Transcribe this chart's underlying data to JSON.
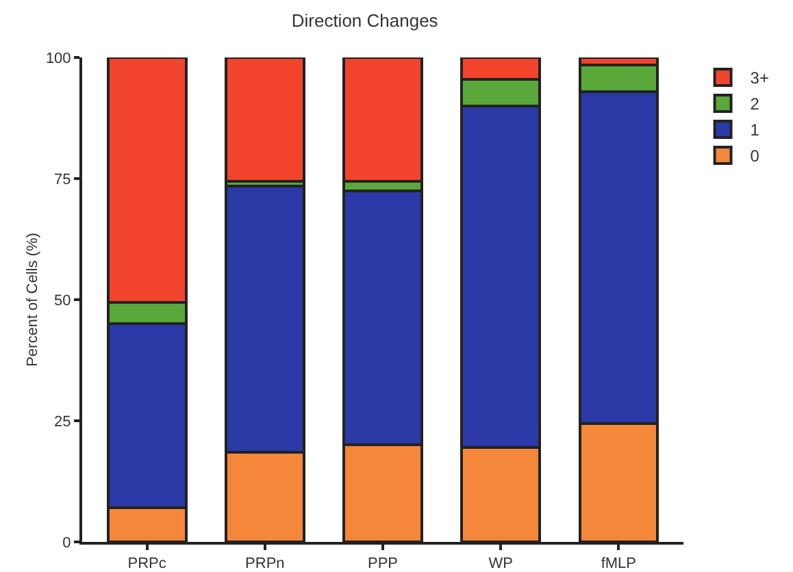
{
  "chart_data": {
    "type": "bar",
    "title": "Direction Changes",
    "ylabel": "Percent of Cells (%)",
    "categories": [
      "PRPc",
      "PRPn",
      "PPP",
      "WP",
      "fMLP"
    ],
    "stacked": true,
    "series": [
      {
        "name": "0",
        "color": "#f5873a",
        "values": [
          7,
          18.5,
          20,
          19.5,
          24.5
        ]
      },
      {
        "name": "1",
        "color": "#2b3aa6",
        "values": [
          38,
          55,
          52.5,
          70.5,
          68.5
        ]
      },
      {
        "name": "2",
        "color": "#5aa83a",
        "values": [
          4.5,
          1,
          2,
          5.5,
          5.5
        ]
      },
      {
        "name": "3+",
        "color": "#f2432c",
        "values": [
          50.5,
          25.5,
          25.5,
          4.5,
          1.5
        ]
      }
    ],
    "ylim": [
      0,
      100
    ],
    "yticks": [
      0,
      25,
      50,
      75,
      100
    ],
    "grid": false,
    "legend": "top right"
  }
}
